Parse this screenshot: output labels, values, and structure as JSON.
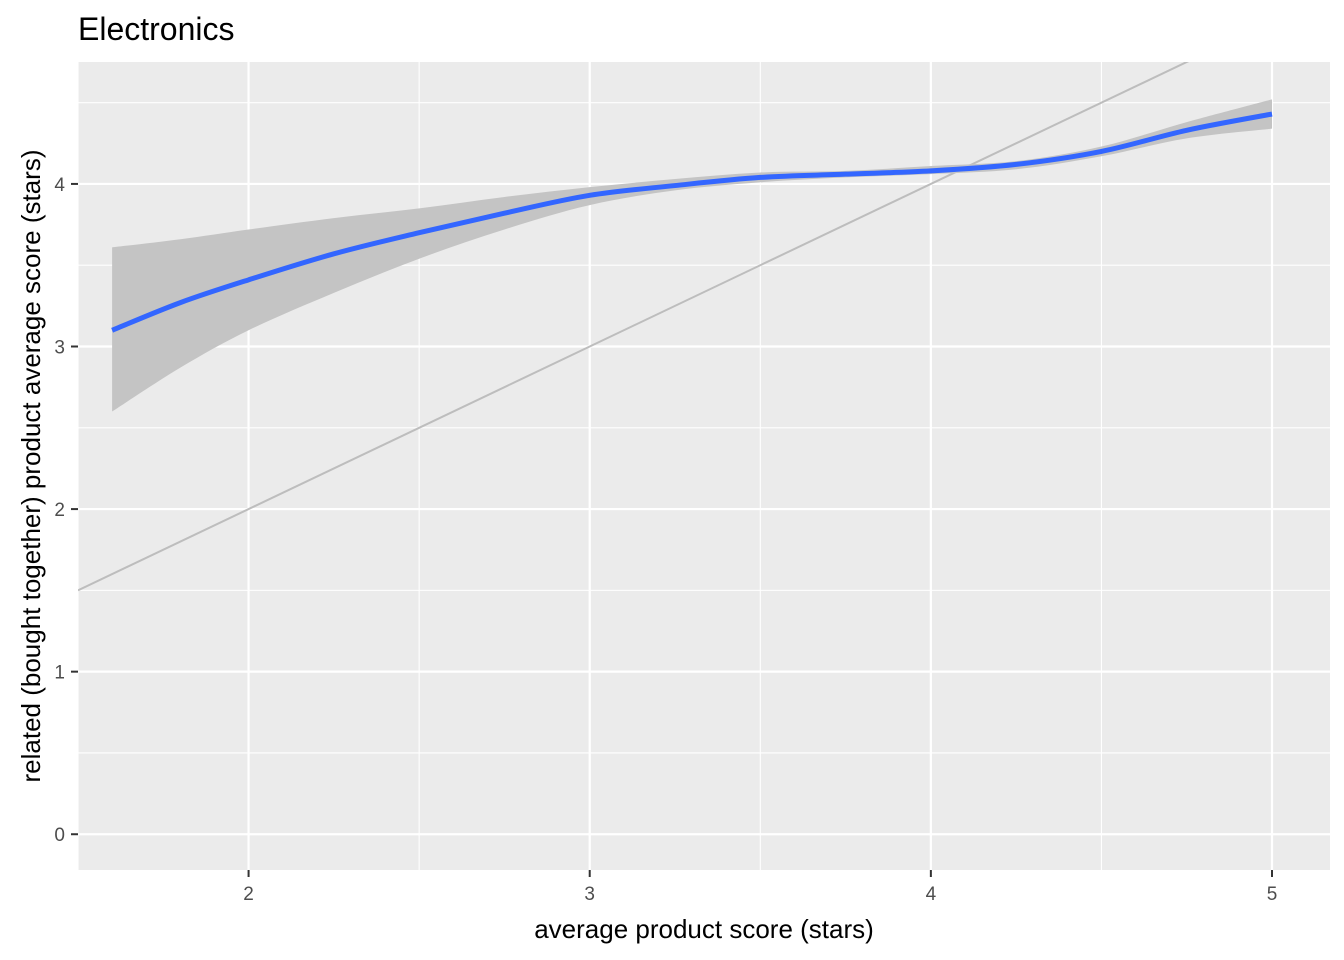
{
  "chart_data": {
    "type": "line",
    "title": "Electronics",
    "xlabel": "average product score (stars)",
    "ylabel": "related (bought together) product average score (stars)",
    "xlim": [
      1.5,
      5.17
    ],
    "ylim": [
      -0.22,
      4.75
    ],
    "x_ticks": [
      2,
      3,
      4,
      5
    ],
    "y_ticks": [
      0,
      1,
      2,
      3,
      4
    ],
    "grid": true,
    "reference_line": {
      "slope": 1,
      "intercept": 0,
      "color": "#bdbdbd"
    },
    "series": [
      {
        "color": "#3366ff",
        "band_color": "#c4c4c4",
        "points": [
          {
            "x": 1.6,
            "y": 3.1,
            "lo": 2.6,
            "hi": 3.61
          },
          {
            "x": 1.8,
            "y": 3.27,
            "lo": 2.87,
            "hi": 3.66
          },
          {
            "x": 2.0,
            "y": 3.41,
            "lo": 3.1,
            "hi": 3.72
          },
          {
            "x": 2.25,
            "y": 3.57,
            "lo": 3.33,
            "hi": 3.79
          },
          {
            "x": 2.5,
            "y": 3.7,
            "lo": 3.54,
            "hi": 3.85
          },
          {
            "x": 2.75,
            "y": 3.82,
            "lo": 3.72,
            "hi": 3.92
          },
          {
            "x": 3.0,
            "y": 3.93,
            "lo": 3.87,
            "hi": 3.98
          },
          {
            "x": 3.25,
            "y": 3.99,
            "lo": 3.96,
            "hi": 4.03
          },
          {
            "x": 3.5,
            "y": 4.04,
            "lo": 4.01,
            "hi": 4.07
          },
          {
            "x": 3.75,
            "y": 4.06,
            "lo": 4.04,
            "hi": 4.08
          },
          {
            "x": 4.0,
            "y": 4.08,
            "lo": 4.06,
            "hi": 4.11
          },
          {
            "x": 4.25,
            "y": 4.12,
            "lo": 4.09,
            "hi": 4.14
          },
          {
            "x": 4.5,
            "y": 4.2,
            "lo": 4.17,
            "hi": 4.23
          },
          {
            "x": 4.75,
            "y": 4.33,
            "lo": 4.28,
            "hi": 4.38
          },
          {
            "x": 5.0,
            "y": 4.43,
            "lo": 4.34,
            "hi": 4.52
          }
        ]
      }
    ]
  }
}
